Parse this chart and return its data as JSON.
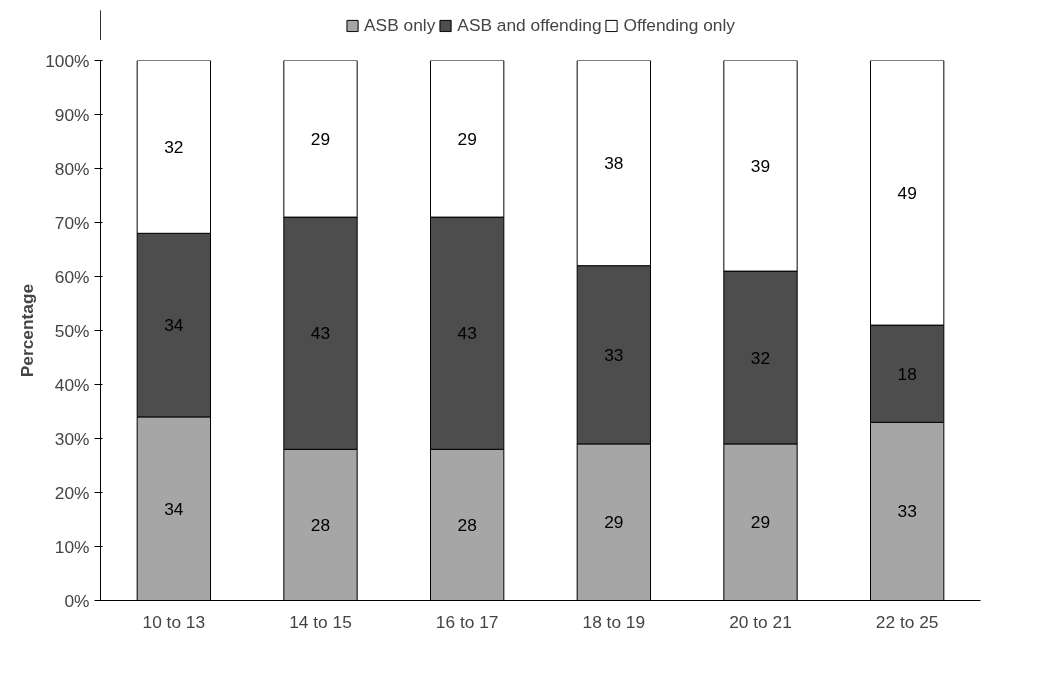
{
  "chart_data": {
    "type": "bar",
    "stacked": true,
    "ylabel": "Percentage",
    "categories": [
      "10 to 13",
      "14 to 15",
      "16 to 17",
      "18 to 19",
      "20 to 21",
      "22 to 25"
    ],
    "series": [
      {
        "name": "ASB only",
        "color": "#a6a6a6",
        "values": [
          34,
          28,
          28,
          29,
          29,
          33
        ]
      },
      {
        "name": "ASB and offending",
        "color": "#4d4d4d",
        "values": [
          34,
          43,
          43,
          33,
          32,
          18
        ]
      },
      {
        "name": "Offending only",
        "color": "#ffffff",
        "values": [
          32,
          29,
          29,
          38,
          39,
          49
        ]
      }
    ],
    "ylim": [
      0,
      100
    ],
    "yticks": [
      {
        "value": 0,
        "label": "0%"
      },
      {
        "value": 10,
        "label": "10%"
      },
      {
        "value": 20,
        "label": "20%"
      },
      {
        "value": 30,
        "label": "30%"
      },
      {
        "value": 40,
        "label": "40%"
      },
      {
        "value": 50,
        "label": "50%"
      },
      {
        "value": 60,
        "label": "60%"
      },
      {
        "value": 70,
        "label": "70%"
      },
      {
        "value": 80,
        "label": "80%"
      },
      {
        "value": 90,
        "label": "90%"
      },
      {
        "value": 100,
        "label": "100%"
      }
    ],
    "data_labels": true,
    "legend": "top",
    "grid": false
  }
}
